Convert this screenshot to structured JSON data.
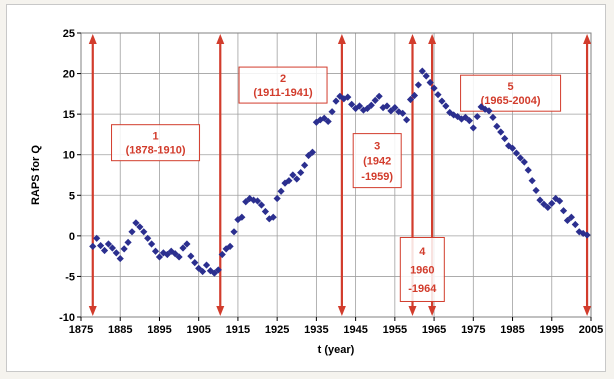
{
  "chart_data": {
    "type": "scatter",
    "xlabel": "t (year)",
    "ylabel": "RAPS for Q",
    "xlim": [
      1875,
      2005
    ],
    "ylim": [
      -10,
      25
    ],
    "xticks": [
      1875,
      1885,
      1895,
      1905,
      1915,
      1925,
      1935,
      1945,
      1955,
      1965,
      1975,
      1985,
      1995,
      2005
    ],
    "yticks": [
      -10,
      -5,
      0,
      5,
      10,
      15,
      20,
      25
    ],
    "grid": true,
    "marker_color": "#2b2f8f",
    "annotation_color": "#d23c2c",
    "series": [
      {
        "x": [
          1878,
          1879,
          1880,
          1881,
          1882,
          1883,
          1884,
          1885,
          1886,
          1887,
          1888,
          1889,
          1890,
          1891,
          1892,
          1893,
          1894,
          1895,
          1896,
          1897,
          1898,
          1899,
          1900,
          1901,
          1902,
          1903,
          1904,
          1905,
          1906,
          1907,
          1908,
          1909,
          1910,
          1911,
          1912,
          1913,
          1914,
          1915,
          1916,
          1917,
          1918,
          1919,
          1920,
          1921,
          1922,
          1923,
          1924,
          1925,
          1926,
          1927,
          1928,
          1929,
          1930,
          1931,
          1932,
          1933,
          1934,
          1935,
          1936,
          1937,
          1938,
          1939,
          1940,
          1941,
          1942,
          1943,
          1944,
          1945,
          1946,
          1947,
          1948,
          1949,
          1950,
          1951,
          1952,
          1953,
          1954,
          1955,
          1956,
          1957,
          1958,
          1959,
          1960,
          1961,
          1962,
          1963,
          1964,
          1965,
          1966,
          1967,
          1968,
          1969,
          1970,
          1971,
          1972,
          1973,
          1974,
          1975,
          1976,
          1977,
          1978,
          1979,
          1980,
          1981,
          1982,
          1983,
          1984,
          1985,
          1986,
          1987,
          1988,
          1989,
          1990,
          1991,
          1992,
          1993,
          1994,
          1995,
          1996,
          1997,
          1998,
          1999,
          2000,
          2001,
          2002,
          2003,
          2004
        ],
        "y": [
          -1.3,
          -0.3,
          -1.2,
          -1.8,
          -1.0,
          -1.5,
          -2.1,
          -2.8,
          -1.6,
          -0.8,
          0.5,
          1.6,
          1.1,
          0.5,
          -0.3,
          -1.0,
          -1.9,
          -2.6,
          -2.1,
          -2.3,
          -1.9,
          -2.2,
          -2.6,
          -1.5,
          -1.0,
          -2.5,
          -3.3,
          -4.0,
          -4.4,
          -3.6,
          -4.3,
          -4.6,
          -4.2,
          -2.3,
          -1.6,
          -1.3,
          0.5,
          2.0,
          2.3,
          4.2,
          4.6,
          4.4,
          4.3,
          3.8,
          3.0,
          2.1,
          2.3,
          4.6,
          5.5,
          6.5,
          6.8,
          7.5,
          7.0,
          7.8,
          8.7,
          9.9,
          10.3,
          14.0,
          14.3,
          14.5,
          14.1,
          15.3,
          16.6,
          17.2,
          16.9,
          17.1,
          16.2,
          15.7,
          16.0,
          15.5,
          15.7,
          16.1,
          16.7,
          17.2,
          15.8,
          16.0,
          15.4,
          15.8,
          15.3,
          15.1,
          14.3,
          16.8,
          17.3,
          18.6,
          20.3,
          19.7,
          18.9,
          18.2,
          17.4,
          16.6,
          16.0,
          15.2,
          14.9,
          14.7,
          14.4,
          14.6,
          14.2,
          13.3,
          14.7,
          15.9,
          15.6,
          15.4,
          14.6,
          13.5,
          12.8,
          12.0,
          11.1,
          10.8,
          10.2,
          9.6,
          9.1,
          8.1,
          6.8,
          5.6,
          4.4,
          3.9,
          3.5,
          4.0,
          4.6,
          4.3,
          3.1,
          1.9,
          2.3,
          1.4,
          0.5,
          0.3,
          0.1
        ]
      }
    ],
    "vlines": [
      1878,
      1910.5,
      1941.5,
      1959.5,
      1964.5,
      2004
    ],
    "periods": [
      {
        "label": "1",
        "range": "(1878-1910)"
      },
      {
        "label": "2",
        "range": "(1911-1941)"
      },
      {
        "label": "3",
        "range_lines": [
          "(1942",
          "-1959)"
        ]
      },
      {
        "label": "4",
        "range_lines": [
          "1960",
          "-1964"
        ]
      },
      {
        "label": "5",
        "range": "(1965-2004)"
      }
    ]
  }
}
